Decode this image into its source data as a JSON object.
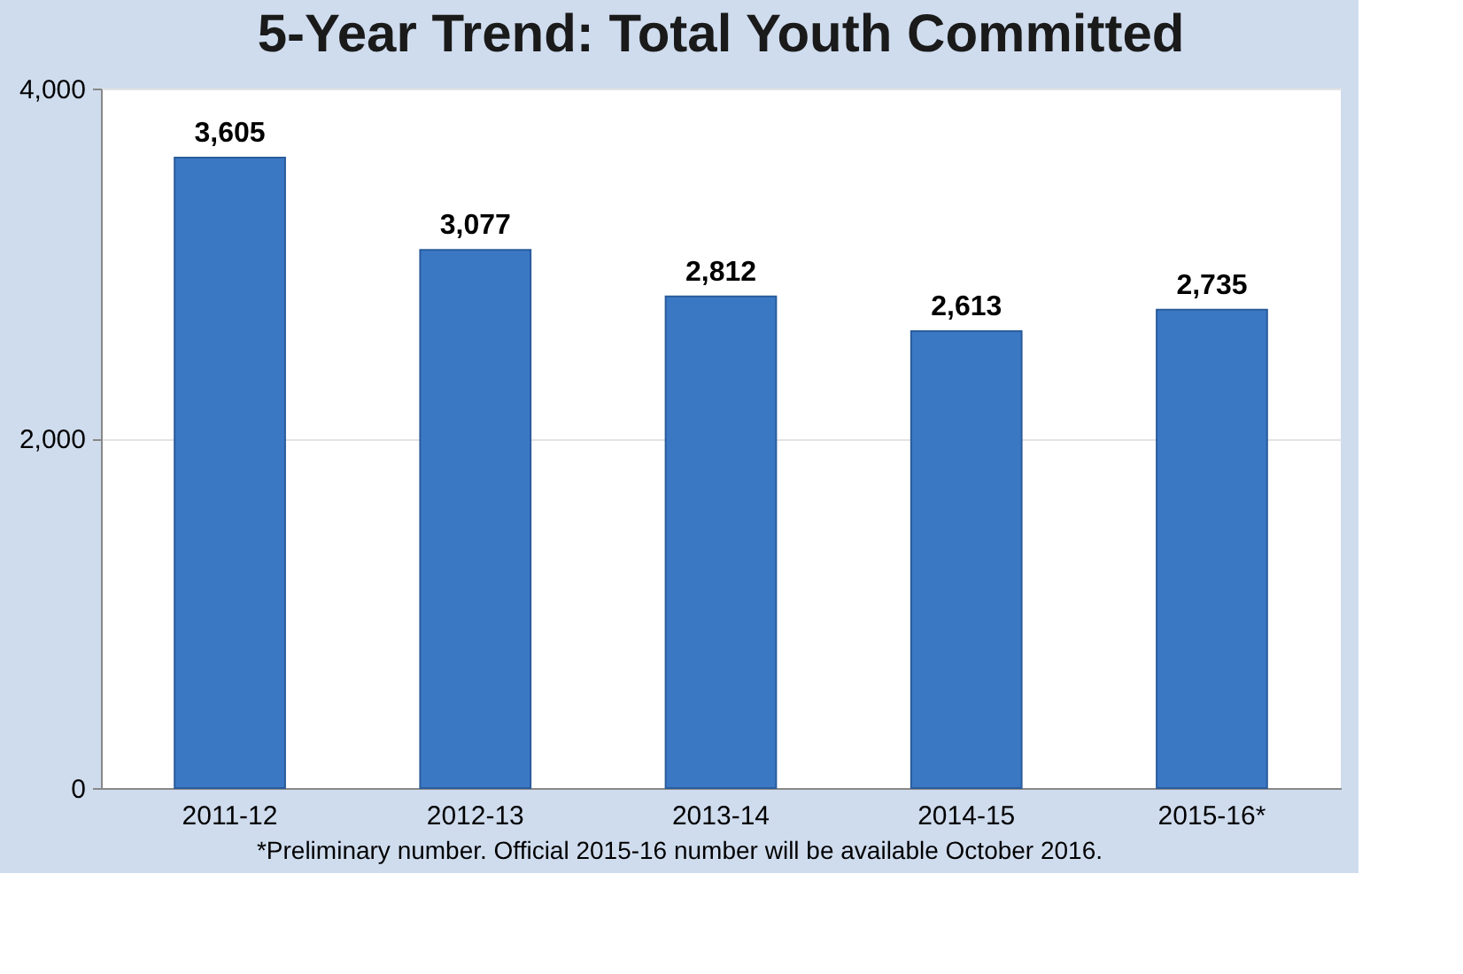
{
  "chart_data": {
    "type": "bar",
    "title": "5-Year Trend: Total Youth Committed",
    "categories": [
      "2011-12",
      "2012-13",
      "2013-14",
      "2014-15",
      "2015-16*"
    ],
    "values": [
      3605,
      3077,
      2812,
      2613,
      2735
    ],
    "color": "#3b78c4",
    "ylim": [
      0,
      4000
    ],
    "yticks": [
      {
        "value": 0,
        "label": "0"
      },
      {
        "value": 2000,
        "label": "2,000"
      },
      {
        "value": 4000,
        "label": "4,000"
      }
    ],
    "grid": "y",
    "value_labels": [
      "3,605",
      "3,077",
      "2,812",
      "2,613",
      "2,735"
    ],
    "annotations": [
      "*Preliminary number.  Official 2015-16  number will be available October 2016."
    ]
  }
}
